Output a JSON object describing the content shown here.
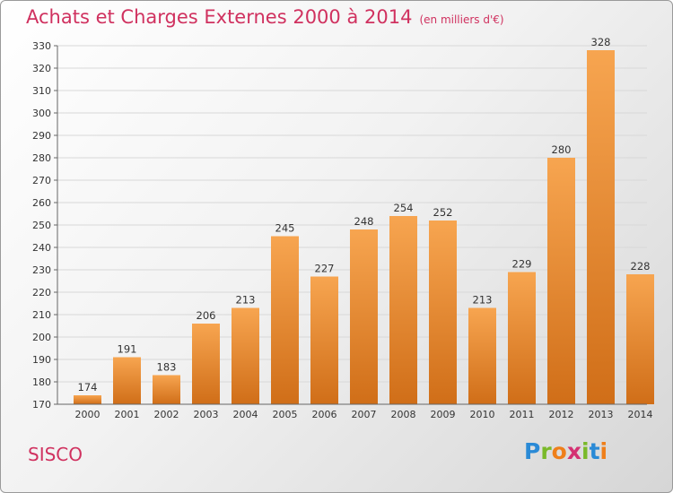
{
  "header": {
    "title": "Achats et Charges Externes 2000 à 2014",
    "subtitle": "(en milliers d'€)"
  },
  "footer": {
    "commune": "SISCO",
    "logo_letters": [
      "P",
      "r",
      "o",
      "x",
      "i",
      "t",
      "i"
    ],
    "logo_colors": [
      "#2a8ad6",
      "#7ab929",
      "#ef7f1a",
      "#d43172",
      "#7ab929",
      "#2a8ad6",
      "#ef7f1a"
    ]
  },
  "colors": {
    "bar_light": "#f7a550",
    "bar_dark": "#d06e18",
    "title": "#d0315f"
  },
  "chart_data": {
    "type": "bar",
    "title": "Achats et Charges Externes 2000 à 2014",
    "subtitle": "(en milliers d'€)",
    "categories": [
      "2000",
      "2001",
      "2002",
      "2003",
      "2004",
      "2005",
      "2006",
      "2007",
      "2008",
      "2009",
      "2010",
      "2011",
      "2012",
      "2013",
      "2014"
    ],
    "values": [
      174,
      191,
      183,
      206,
      213,
      245,
      227,
      248,
      254,
      252,
      213,
      229,
      280,
      328,
      228
    ],
    "ylim": [
      170,
      330
    ],
    "yticks": [
      170,
      180,
      190,
      200,
      210,
      220,
      230,
      240,
      250,
      260,
      270,
      280,
      290,
      300,
      310,
      320,
      330
    ],
    "grid": true
  }
}
